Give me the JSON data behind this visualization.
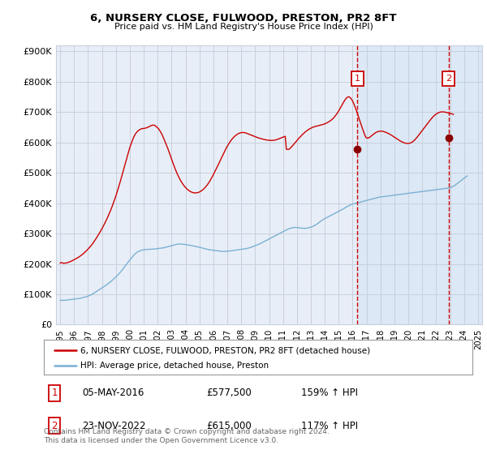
{
  "title": "6, NURSERY CLOSE, FULWOOD, PRESTON, PR2 8FT",
  "subtitle": "Price paid vs. HM Land Registry's House Price Index (HPI)",
  "footnote": "Contains HM Land Registry data © Crown copyright and database right 2024.\nThis data is licensed under the Open Government Licence v3.0.",
  "legend_line1": "6, NURSERY CLOSE, FULWOOD, PRESTON, PR2 8FT (detached house)",
  "legend_line2": "HPI: Average price, detached house, Preston",
  "sale1_date": "05-MAY-2016",
  "sale1_price": "£577,500",
  "sale1_hpi": "159% ↑ HPI",
  "sale2_date": "23-NOV-2022",
  "sale2_price": "£615,000",
  "sale2_hpi": "117% ↑ HPI",
  "red_color": "#cc0000",
  "blue_color": "#7ab0d4",
  "bg_color_left": "#e8eef7",
  "bg_color_right": "#dce8f5",
  "grid_color": "#c8d0dc",
  "sale1_year": 2016.35,
  "sale2_year": 2022.9,
  "xlim": [
    1994.7,
    2025.3
  ],
  "ylim_max": 920000,
  "yticks": [
    0,
    100000,
    200000,
    300000,
    400000,
    500000,
    600000,
    700000,
    800000,
    900000
  ],
  "ytick_labels": [
    "£0",
    "£100K",
    "£200K",
    "£300K",
    "£400K",
    "£500K",
    "£600K",
    "£700K",
    "£800K",
    "£900K"
  ],
  "hpi_monthly": {
    "start_year": 1995.0,
    "step": 0.0833,
    "values": [
      80000,
      80500,
      80200,
      79800,
      80100,
      80500,
      81000,
      81500,
      82000,
      82500,
      83000,
      83500,
      84000,
      84500,
      85000,
      85500,
      86000,
      86500,
      87500,
      88500,
      89500,
      90500,
      91500,
      92500,
      94000,
      95500,
      97000,
      99000,
      101000,
      103500,
      106000,
      108500,
      111000,
      113500,
      116000,
      118500,
      121000,
      123500,
      126000,
      128500,
      131000,
      134000,
      137000,
      140000,
      143000,
      146500,
      150000,
      153500,
      157000,
      161000,
      165000,
      169000,
      173000,
      178000,
      183000,
      188000,
      193000,
      198000,
      203000,
      208000,
      213000,
      217500,
      222000,
      226500,
      231000,
      234500,
      237500,
      240000,
      242000,
      243500,
      245000,
      246000,
      246500,
      247000,
      247500,
      247800,
      248000,
      248200,
      248400,
      248600,
      248800,
      249000,
      249500,
      250000,
      250500,
      251000,
      251500,
      252000,
      252500,
      253000,
      254000,
      255000,
      256000,
      257000,
      258000,
      259000,
      260000,
      261000,
      262000,
      263000,
      264000,
      265000,
      265500,
      265800,
      265600,
      265200,
      264800,
      264300,
      263800,
      263200,
      262500,
      261800,
      261200,
      260500,
      259800,
      259000,
      258200,
      257400,
      256600,
      255800,
      255000,
      254000,
      253000,
      252000,
      251000,
      250000,
      249000,
      248000,
      247000,
      246500,
      246000,
      245500,
      245000,
      244500,
      244000,
      243500,
      243000,
      242500,
      242000,
      241500,
      241000,
      241000,
      241200,
      241500,
      241800,
      242100,
      242500,
      243000,
      243500,
      244000,
      244600,
      245200,
      245800,
      246400,
      247000,
      247500,
      248000,
      248500,
      249000,
      249500,
      250000,
      251000,
      252000,
      253000,
      254000,
      255500,
      257000,
      258500,
      260000,
      261500,
      263000,
      264500,
      266000,
      268000,
      270000,
      272000,
      274000,
      276000,
      278000,
      280000,
      282000,
      284000,
      286000,
      288000,
      290000,
      292000,
      294000,
      296000,
      298000,
      300000,
      302000,
      304000,
      306000,
      308000,
      310000,
      312000,
      314000,
      315500,
      317000,
      318000,
      319000,
      319500,
      320000,
      320000,
      320000,
      319500,
      319000,
      318500,
      318000,
      317500,
      317000,
      317000,
      317500,
      318000,
      319000,
      320000,
      321000,
      322500,
      324000,
      326000,
      328000,
      330500,
      333000,
      336000,
      339000,
      342000,
      344500,
      347000,
      349000,
      351000,
      353000,
      355000,
      357000,
      359000,
      361000,
      363000,
      365000,
      367000,
      369000,
      371000,
      373000,
      375000,
      377000,
      379000,
      381000,
      383500,
      386000,
      388000,
      390000,
      392000,
      394000,
      396000,
      397000,
      398000,
      399000,
      400000,
      401000,
      402000,
      403000,
      404000,
      405000,
      406000,
      407000,
      408000,
      409000,
      410000,
      411000,
      412000,
      413000,
      414000,
      415000,
      416000,
      417000,
      418000,
      419000,
      420000,
      420500,
      421000,
      421500,
      422000,
      422500,
      423000,
      423500,
      424000,
      424500,
      425000,
      425500,
      426000,
      426500,
      427000,
      427500,
      428000,
      428500,
      429000,
      429500,
      430000,
      430500,
      431000,
      431500,
      432000,
      432500,
      433000,
      433500,
      434000,
      434500,
      435000,
      435500,
      436000,
      436500,
      437000,
      437500,
      438000,
      438500,
      439000,
      439500,
      440000,
      440500,
      441000,
      441500,
      442000,
      442500,
      443000,
      443500,
      444000,
      444500,
      445000,
      445500,
      446000,
      446500,
      447000,
      447500,
      448000,
      448500,
      449000,
      449500,
      450000,
      451000,
      452500,
      454000,
      456000,
      458500,
      461000,
      464000,
      467000,
      470000,
      473000,
      476000,
      479000,
      482000,
      485000,
      487500,
      490000
    ]
  },
  "red_monthly": {
    "start_year": 1995.0,
    "step": 0.0833,
    "values": [
      203000,
      204000,
      203500,
      202000,
      202500,
      203000,
      204000,
      205000,
      206500,
      208000,
      210000,
      212000,
      214000,
      216000,
      218000,
      220000,
      222500,
      225000,
      228000,
      231000,
      234000,
      237500,
      241000,
      245000,
      249000,
      253000,
      257500,
      262000,
      267000,
      272500,
      278000,
      284000,
      290000,
      296000,
      302500,
      309000,
      316000,
      323000,
      330500,
      338000,
      346000,
      354500,
      363000,
      372000,
      381500,
      391500,
      402000,
      413000,
      424000,
      436000,
      448500,
      461000,
      474000,
      487500,
      501000,
      515000,
      529000,
      543000,
      556500,
      570000,
      583000,
      594000,
      604500,
      614000,
      622500,
      629000,
      634000,
      638000,
      641000,
      643500,
      645000,
      646000,
      646500,
      647000,
      648000,
      649500,
      651000,
      653000,
      655000,
      656500,
      657500,
      657000,
      655000,
      652000,
      648500,
      644000,
      638500,
      632000,
      624500,
      616000,
      607000,
      597500,
      588000,
      578000,
      567500,
      556500,
      545500,
      535000,
      524500,
      514500,
      505000,
      496000,
      488000,
      480500,
      473500,
      467000,
      461500,
      456500,
      452000,
      448000,
      444500,
      441500,
      439000,
      437000,
      435500,
      434500,
      434000,
      434000,
      434500,
      435500,
      437000,
      439000,
      441500,
      444500,
      448000,
      452000,
      456500,
      461500,
      467000,
      473000,
      479500,
      486500,
      494000,
      501500,
      509000,
      517000,
      525000,
      533000,
      541000,
      549000,
      557000,
      565000,
      573000,
      580500,
      587500,
      594000,
      600000,
      605500,
      610500,
      615000,
      619000,
      622500,
      625500,
      628000,
      630000,
      631500,
      632500,
      633000,
      633000,
      632500,
      631500,
      630000,
      628500,
      627000,
      625500,
      624000,
      622500,
      621000,
      619500,
      618000,
      616500,
      615000,
      614000,
      613000,
      612000,
      611000,
      610000,
      609000,
      608500,
      608000,
      607500,
      607000,
      607000,
      607000,
      607500,
      608000,
      609000,
      610000,
      611500,
      613000,
      614500,
      616000,
      617500,
      619000,
      620500,
      577500,
      577500,
      577500,
      580000,
      584000,
      588000,
      592500,
      597000,
      601500,
      606000,
      610500,
      615000,
      619000,
      623000,
      627000,
      630500,
      634000,
      637000,
      640000,
      642500,
      645000,
      647000,
      649000,
      650500,
      652000,
      653000,
      654000,
      655000,
      656000,
      657000,
      658000,
      659000,
      660000,
      661500,
      663000,
      665000,
      667000,
      669500,
      672000,
      675000,
      678500,
      682500,
      687000,
      692000,
      697500,
      703500,
      710000,
      717000,
      724000,
      731000,
      737500,
      743000,
      747500,
      750000,
      750500,
      748000,
      743500,
      737000,
      729000,
      719500,
      709000,
      698000,
      686500,
      675000,
      663500,
      652500,
      641500,
      631000,
      621000,
      615000,
      615000,
      615000,
      618000,
      621000,
      624000,
      627000,
      630000,
      632500,
      634500,
      636000,
      637000,
      637500,
      637500,
      637000,
      636000,
      634500,
      633000,
      631500,
      629500,
      627500,
      625500,
      623000,
      620500,
      618000,
      615500,
      613000,
      610500,
      608000,
      605500,
      603500,
      601500,
      600000,
      598500,
      597500,
      597000,
      597000,
      597500,
      598500,
      600500,
      603000,
      606000,
      610000,
      614500,
      619000,
      624000,
      629000,
      634000,
      639000,
      644000,
      649000,
      654000,
      659000,
      664000,
      669000,
      674000,
      678500,
      683000,
      687000,
      690500,
      693500,
      696000,
      698000,
      699500,
      700500,
      701000,
      701000,
      700500,
      700000,
      699000,
      698000,
      697000,
      696000,
      695000,
      694000,
      693000
    ]
  }
}
